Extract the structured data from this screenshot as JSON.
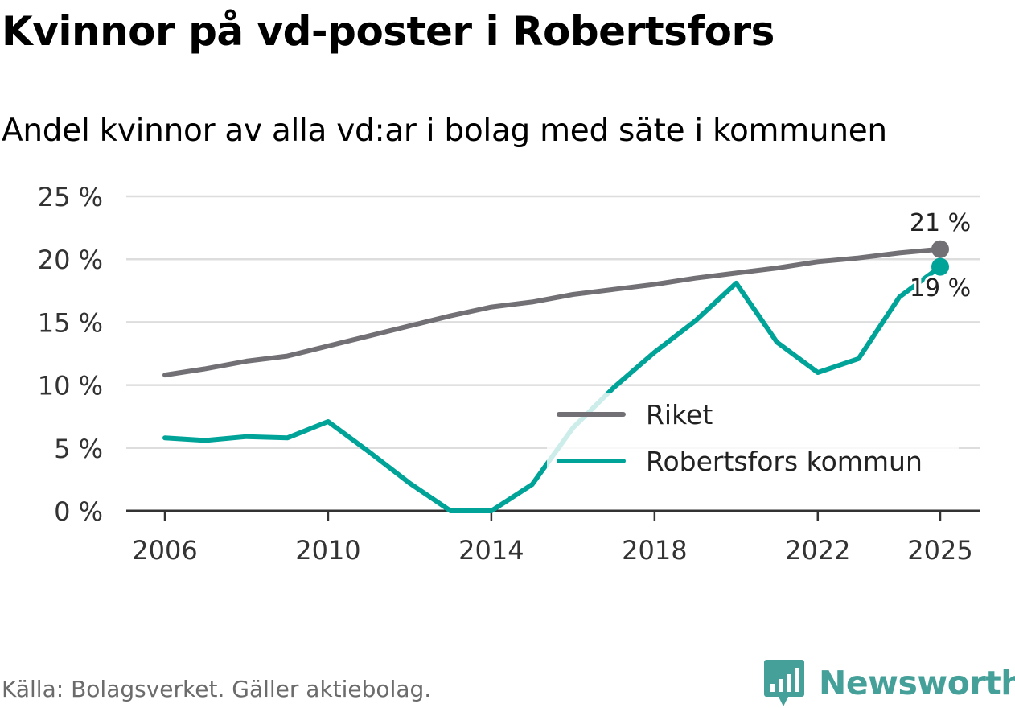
{
  "title": "Kvinnor på vd-poster i Robertsfors",
  "subtitle": "Andel kvinnor av alla vd:ar i bolag med säte i kommunen",
  "source": "Källa: Bolagsverket. Gäller aktiebolag.",
  "brand": {
    "name": "Newsworthy",
    "icon": "newsworthy-bar-chart-icon",
    "color": "#45a09a"
  },
  "colors": {
    "riket": "#727075",
    "robertsfors": "#00a398",
    "grid": "#dddddd",
    "axis": "#333333"
  },
  "chart_data": {
    "type": "line",
    "title": "Kvinnor på vd-poster i Robertsfors",
    "subtitle": "Andel kvinnor av alla vd:ar i bolag med säte i kommunen",
    "xlabel": "",
    "ylabel": "",
    "x": [
      2006,
      2007,
      2008,
      2009,
      2010,
      2011,
      2012,
      2013,
      2014,
      2015,
      2016,
      2017,
      2018,
      2019,
      2020,
      2021,
      2022,
      2023,
      2024,
      2025
    ],
    "x_ticks": [
      2006,
      2010,
      2014,
      2018,
      2022,
      2025
    ],
    "x_tick_labels": [
      "2006",
      "2010",
      "2014",
      "2018",
      "2022",
      "2025"
    ],
    "ylim": [
      0,
      25
    ],
    "y_ticks": [
      0,
      5,
      10,
      15,
      20,
      25
    ],
    "y_tick_labels": [
      "0 %",
      "5 %",
      "10 %",
      "15 %",
      "20 %",
      "25 %"
    ],
    "grid": true,
    "legend_position": "center-right",
    "series": [
      {
        "name": "Riket",
        "color": "#727075",
        "values": [
          10.8,
          11.3,
          11.9,
          12.3,
          13.1,
          13.9,
          14.7,
          15.5,
          16.2,
          16.6,
          17.2,
          17.6,
          18.0,
          18.5,
          18.9,
          19.3,
          19.8,
          20.1,
          20.5,
          20.8
        ],
        "end_label": "21 %"
      },
      {
        "name": "Robertsfors kommun",
        "color": "#00a398",
        "values": [
          5.8,
          5.6,
          5.9,
          5.8,
          7.1,
          4.7,
          2.2,
          0.0,
          0.0,
          2.1,
          6.6,
          9.8,
          12.6,
          15.1,
          18.1,
          13.4,
          11.0,
          12.1,
          17.0,
          19.4
        ],
        "end_label": "19 %"
      }
    ]
  }
}
